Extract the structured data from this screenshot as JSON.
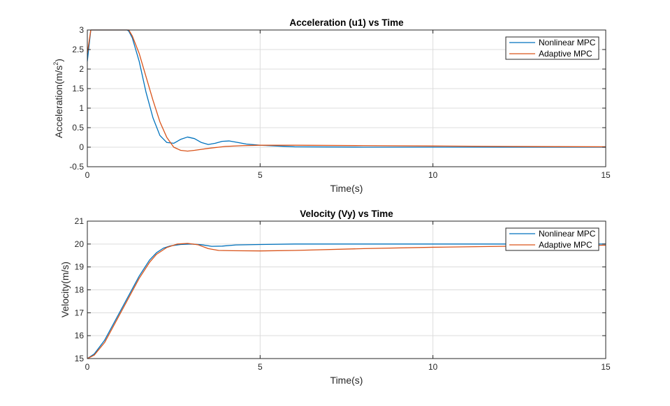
{
  "chart_data": [
    {
      "type": "line",
      "title": "Acceleration (u1) vs Time",
      "xlabel": "Time(s)",
      "ylabel_main": "Acceleration(m/s",
      "ylabel_sup": "2",
      "ylabel_end": ")",
      "xlim": [
        0,
        15
      ],
      "ylim": [
        -0.5,
        3
      ],
      "xticks": [
        0,
        5,
        10,
        15
      ],
      "yticks": [
        -0.5,
        0,
        0.5,
        1,
        1.5,
        2,
        2.5,
        3
      ],
      "xtick_labels": [
        "0",
        "5",
        "10",
        "15"
      ],
      "ytick_labels": [
        "-0.5",
        "0",
        "0.5",
        "1",
        "1.5",
        "2",
        "2.5",
        "3"
      ],
      "grid": true,
      "legend_position": "top-right",
      "series": [
        {
          "name": "Nonlinear MPC",
          "color": "#0072BD",
          "points": [
            [
              0,
              2.2
            ],
            [
              0.05,
              2.6
            ],
            [
              0.1,
              3.0
            ],
            [
              1.15,
              3.0
            ],
            [
              1.2,
              2.97
            ],
            [
              1.3,
              2.8
            ],
            [
              1.5,
              2.2
            ],
            [
              1.7,
              1.4
            ],
            [
              1.9,
              0.75
            ],
            [
              2.1,
              0.3
            ],
            [
              2.3,
              0.12
            ],
            [
              2.5,
              0.1
            ],
            [
              2.7,
              0.2
            ],
            [
              2.9,
              0.26
            ],
            [
              3.1,
              0.22
            ],
            [
              3.3,
              0.12
            ],
            [
              3.5,
              0.07
            ],
            [
              3.7,
              0.1
            ],
            [
              3.9,
              0.15
            ],
            [
              4.1,
              0.16
            ],
            [
              4.3,
              0.13
            ],
            [
              4.6,
              0.08
            ],
            [
              5.0,
              0.05
            ],
            [
              5.5,
              0.03
            ],
            [
              6,
              0.01
            ],
            [
              8,
              0.0
            ],
            [
              10,
              0.0
            ],
            [
              15,
              0.0
            ]
          ]
        },
        {
          "name": "Adaptive MPC",
          "color": "#D95319",
          "points": [
            [
              0,
              2.4
            ],
            [
              0.05,
              2.7
            ],
            [
              0.1,
              3.0
            ],
            [
              1.2,
              3.0
            ],
            [
              1.3,
              2.85
            ],
            [
              1.5,
              2.4
            ],
            [
              1.7,
              1.8
            ],
            [
              1.9,
              1.2
            ],
            [
              2.1,
              0.65
            ],
            [
              2.3,
              0.25
            ],
            [
              2.5,
              0.0
            ],
            [
              2.7,
              -0.08
            ],
            [
              2.9,
              -0.1
            ],
            [
              3.1,
              -0.08
            ],
            [
              3.5,
              -0.03
            ],
            [
              4,
              0.02
            ],
            [
              4.5,
              0.04
            ],
            [
              5,
              0.05
            ],
            [
              6,
              0.05
            ],
            [
              8,
              0.04
            ],
            [
              10,
              0.03
            ],
            [
              12,
              0.02
            ],
            [
              15,
              0.01
            ]
          ]
        }
      ]
    },
    {
      "type": "line",
      "title": "Velocity (Vy) vs Time",
      "xlabel": "Time(s)",
      "ylabel_main": "Velocity(m/s)",
      "ylabel_sup": "",
      "ylabel_end": "",
      "xlim": [
        0,
        15
      ],
      "ylim": [
        15,
        21
      ],
      "xticks": [
        0,
        5,
        10,
        15
      ],
      "yticks": [
        15,
        16,
        17,
        18,
        19,
        20,
        21
      ],
      "xtick_labels": [
        "0",
        "5",
        "10",
        "15"
      ],
      "ytick_labels": [
        "15",
        "16",
        "17",
        "18",
        "19",
        "20",
        "21"
      ],
      "grid": true,
      "legend_position": "top-right",
      "series": [
        {
          "name": "Nonlinear MPC",
          "color": "#0072BD",
          "points": [
            [
              0,
              15.0
            ],
            [
              0.2,
              15.2
            ],
            [
              0.5,
              15.8
            ],
            [
              1.0,
              17.2
            ],
            [
              1.5,
              18.6
            ],
            [
              1.8,
              19.3
            ],
            [
              2.0,
              19.62
            ],
            [
              2.2,
              19.82
            ],
            [
              2.4,
              19.92
            ],
            [
              2.7,
              19.98
            ],
            [
              3.0,
              20.0
            ],
            [
              3.3,
              19.97
            ],
            [
              3.6,
              19.9
            ],
            [
              3.9,
              19.91
            ],
            [
              4.3,
              19.96
            ],
            [
              5,
              19.98
            ],
            [
              6,
              20.0
            ],
            [
              15,
              20.0
            ]
          ]
        },
        {
          "name": "Adaptive MPC",
          "color": "#D95319",
          "points": [
            [
              0,
              15.0
            ],
            [
              0.2,
              15.15
            ],
            [
              0.5,
              15.7
            ],
            [
              1.0,
              17.1
            ],
            [
              1.5,
              18.5
            ],
            [
              1.8,
              19.2
            ],
            [
              2.0,
              19.55
            ],
            [
              2.3,
              19.85
            ],
            [
              2.6,
              20.0
            ],
            [
              2.9,
              20.03
            ],
            [
              3.2,
              19.97
            ],
            [
              3.5,
              19.8
            ],
            [
              3.8,
              19.72
            ],
            [
              4.2,
              19.71
            ],
            [
              5,
              19.7
            ],
            [
              6,
              19.72
            ],
            [
              8,
              19.8
            ],
            [
              10,
              19.86
            ],
            [
              12,
              19.9
            ],
            [
              15,
              19.95
            ]
          ]
        }
      ]
    }
  ]
}
